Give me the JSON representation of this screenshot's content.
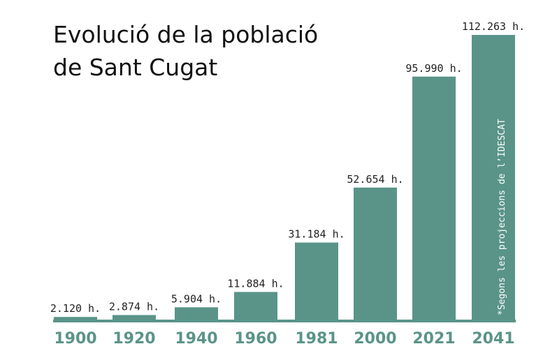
{
  "chart_data": {
    "type": "bar",
    "title_lines": [
      "Evolució de la població",
      "de Sant Cugat"
    ],
    "categories": [
      "1900",
      "1920",
      "1940",
      "1960",
      "1981",
      "2000",
      "2021",
      "2041"
    ],
    "values": [
      2120,
      2874,
      5904,
      11884,
      31184,
      52654,
      95990,
      112263
    ],
    "value_labels": [
      "2.120 h.",
      "2.874 h.",
      "5.904 h.",
      "11.884 h.",
      "31.184 h.",
      "52.654 h.",
      "95.990 h.",
      "112.263 h."
    ],
    "annotation": "*Segons les projeccions de l’IDESCAT",
    "ylim": [
      0,
      115000
    ],
    "grid": false,
    "legend": "none",
    "colors": {
      "bar": "#5a9488",
      "baseline": "#5a9488",
      "category_text": "#5a9488"
    }
  }
}
